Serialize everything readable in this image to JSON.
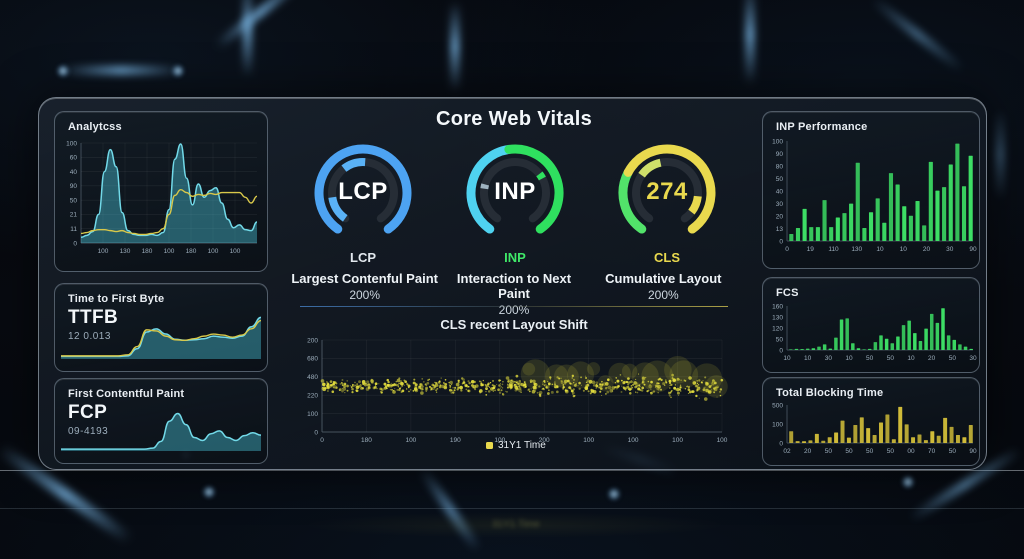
{
  "page_title": "Core Web Vitals",
  "accent_colors": {
    "blue": "#4da3f2",
    "cyan": "#4fd2f0",
    "green": "#3fe768",
    "yellow": "#e9d94e",
    "teal": "#49c3d8"
  },
  "chart_data": [
    {
      "id": "analytics",
      "type": "area",
      "title": "Analytcss",
      "y_ticks": [
        "100",
        "60",
        "40",
        "90",
        "50",
        "21",
        "11",
        "0"
      ],
      "x_ticks": [
        "100",
        "130",
        "180",
        "100",
        "180",
        "100",
        "100"
      ],
      "ylim": [
        0,
        105
      ],
      "series": [
        {
          "name": "traffic",
          "kind": "area",
          "color": "#49c3d8",
          "values": [
            6,
            8,
            12,
            30,
            75,
            98,
            80,
            32,
            13,
            9,
            8,
            8,
            9,
            8,
            11,
            35,
            88,
            104,
            68,
            40,
            62,
            48,
            55,
            58,
            42,
            25,
            16,
            19,
            14,
            13,
            22
          ]
        },
        {
          "name": "trend",
          "kind": "line",
          "color": "#d8c84a",
          "values": [
            10,
            11,
            13,
            14,
            14,
            13,
            12,
            13,
            11,
            10,
            9,
            9,
            10,
            11,
            15,
            30,
            50,
            56,
            53,
            49,
            51,
            50,
            52,
            51,
            53,
            53,
            53,
            53,
            48,
            42,
            49
          ]
        }
      ]
    },
    {
      "id": "ttfb",
      "type": "area",
      "title": "Time to First Byte",
      "metric": "TTFB",
      "value": "12 0.013",
      "ylim": [
        0,
        100
      ],
      "series": [
        {
          "name": "ttfb",
          "kind": "area",
          "color": "#49c3d8",
          "values": [
            5,
            5,
            5,
            5,
            5,
            5,
            5,
            6,
            20,
            52,
            58,
            48,
            38,
            36,
            37,
            39,
            44,
            42,
            40,
            44,
            62,
            80
          ]
        },
        {
          "name": "trend",
          "kind": "line",
          "color": "#d8c84a",
          "values": [
            6,
            6,
            6,
            6,
            6,
            6,
            6,
            8,
            24,
            56,
            54,
            44,
            37,
            36,
            39,
            44,
            48,
            46,
            42,
            46,
            58,
            74
          ]
        }
      ]
    },
    {
      "id": "fcp",
      "type": "area",
      "title": "First Contentful Paint",
      "metric": "FCP",
      "value": "09-4193",
      "ylim": [
        0,
        100
      ],
      "series": [
        {
          "name": "fcp",
          "kind": "area",
          "color": "#49c3d8",
          "values": [
            4,
            4,
            4,
            4,
            4,
            4,
            4,
            4,
            4,
            4,
            4,
            6,
            20,
            62,
            78,
            55,
            28,
            22,
            36,
            42,
            28,
            22,
            32,
            38,
            33
          ]
        }
      ]
    },
    {
      "id": "gauges",
      "type": "gauge",
      "title": "Core Web Vitals",
      "items": [
        {
          "id": "lcp",
          "center_text": "LCP",
          "center_color": "#ffffff",
          "label": "LCP",
          "label_color": "#e2e8ee",
          "caption": "Largest Contenful Paint",
          "percent": "200%",
          "segments": [
            {
              "from": -145,
              "to": 145,
              "color": "#4da3f2"
            }
          ],
          "inner_marks": [
            {
              "from": -38,
              "to": 4,
              "color": "#5ab2f6"
            },
            {
              "from": -145,
              "to": -98,
              "color": "#5ab2f6"
            }
          ]
        },
        {
          "id": "inp",
          "center_text": "INP",
          "center_color": "#ffffff",
          "label": "INP",
          "label_color": "#3fe768",
          "caption": "Interaction to Next Paint",
          "percent": "200%",
          "segments": [
            {
              "from": -145,
              "to": -8,
              "color": "#4fd2f0"
            },
            {
              "from": -8,
              "to": 145,
              "color": "#2fe05f"
            }
          ],
          "inner_marks": [
            {
              "from": 52,
              "to": 62,
              "color": "#2fe05f"
            },
            {
              "from": -82,
              "to": -74,
              "color": "#9fb3c0"
            }
          ]
        },
        {
          "id": "cls",
          "center_text": "274",
          "center_color": "#e9d94e",
          "label": "CLS",
          "label_color": "#e9d94e",
          "caption": "Cumulative Layout",
          "percent": "200%",
          "segments": [
            {
              "from": -145,
              "to": -62,
              "color": "#52e36a"
            },
            {
              "from": -62,
              "to": 145,
              "color": "#e9d94e"
            }
          ],
          "inner_marks": [
            {
              "from": -55,
              "to": -12,
              "color": "#cfe06a"
            },
            {
              "from": 96,
              "to": 128,
              "color": "#e9d94e"
            }
          ]
        }
      ]
    },
    {
      "id": "cls_scatter",
      "type": "scatter",
      "title": "CLS recent Layout Shift",
      "legend": "31Y1 Time",
      "legend_color": "#e9d94e",
      "y_ticks": [
        "200",
        "680",
        "480",
        "220",
        "100",
        "0"
      ],
      "x_ticks": [
        "0",
        "180",
        "100",
        "190",
        "100",
        "200",
        "100",
        "100",
        "100",
        "100"
      ],
      "point_color": "#e8e23e",
      "points_spec": {
        "seed": 13,
        "n": 680,
        "band_center": 0.5,
        "band_sd": 0.1,
        "blob_n": 15
      }
    },
    {
      "id": "inp_performance",
      "type": "bar",
      "title": "INP Performance",
      "color": "#3fe768",
      "ylim": [
        0,
        115
      ],
      "y_ticks": [
        "100",
        "90",
        "80",
        "50",
        "40",
        "30",
        "20",
        "13",
        "0"
      ],
      "x_ticks": [
        "0",
        "19",
        "110",
        "130",
        "10",
        "10",
        "20",
        "30",
        "90"
      ],
      "values": [
        8,
        15,
        37,
        16,
        16,
        47,
        16,
        27,
        32,
        43,
        90,
        15,
        33,
        49,
        21,
        78,
        65,
        40,
        29,
        46,
        18,
        91,
        58,
        62,
        88,
        112,
        63,
        98
      ]
    },
    {
      "id": "fcs",
      "type": "bar",
      "title": "FCS",
      "color": "#3fe768",
      "ylim": [
        0,
        195
      ],
      "y_ticks": [
        "160",
        "130",
        "120",
        "50",
        "0"
      ],
      "x_ticks": [
        "10",
        "10",
        "30",
        "10",
        "50",
        "50",
        "10",
        "20",
        "50",
        "30"
      ],
      "values": [
        3,
        5,
        4,
        6,
        8,
        15,
        25,
        6,
        55,
        135,
        140,
        30,
        8,
        3,
        5,
        35,
        65,
        50,
        30,
        60,
        110,
        130,
        75,
        40,
        95,
        160,
        120,
        185,
        65,
        45,
        25,
        15,
        5
      ]
    },
    {
      "id": "tbt",
      "type": "bar",
      "title": "Total Blocking Time",
      "color": "#d8c33a",
      "ylim": [
        0,
        200
      ],
      "y_ticks": [
        "500",
        "100",
        "0"
      ],
      "x_ticks": [
        "02",
        "20",
        "50",
        "50",
        "50",
        "50",
        "00",
        "70",
        "50",
        "90"
      ],
      "values": [
        62,
        10,
        9,
        14,
        48,
        12,
        30,
        55,
        118,
        28,
        95,
        135,
        78,
        42,
        108,
        150,
        20,
        190,
        98,
        30,
        45,
        15,
        62,
        38,
        132,
        85,
        42,
        30,
        95
      ]
    }
  ]
}
